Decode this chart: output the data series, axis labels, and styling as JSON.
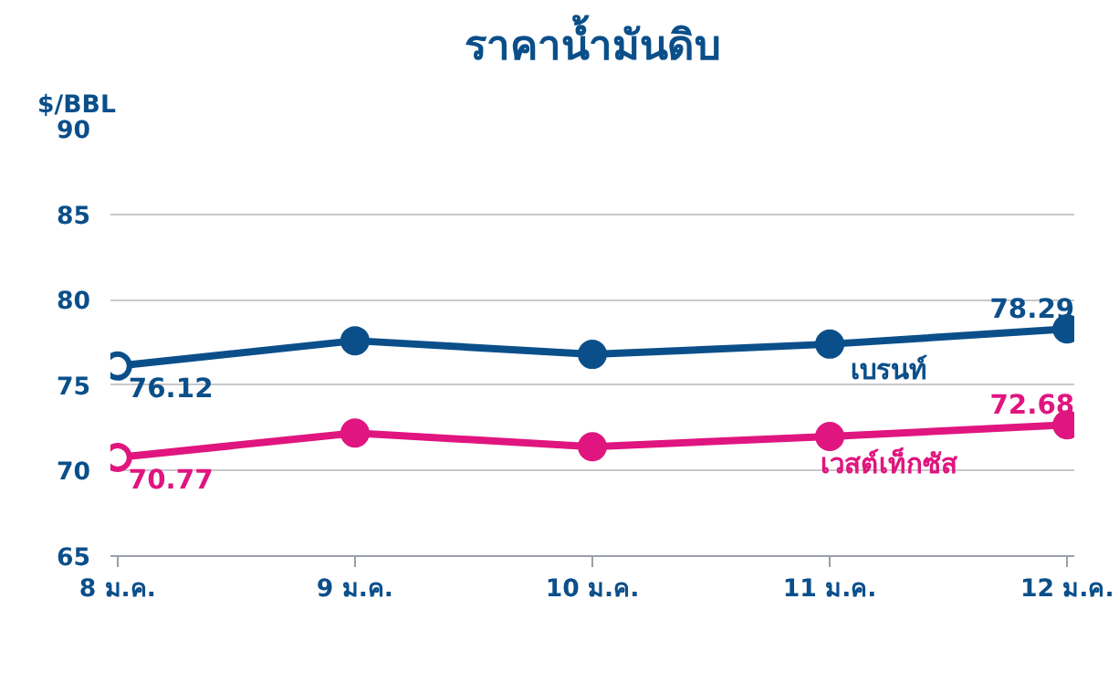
{
  "chart_data": {
    "type": "line",
    "title": "ราคาน้ำมันดิบ",
    "ylabel": "$/BBL",
    "categories": [
      "8 ม.ค.",
      "9 ม.ค.",
      "10 ม.ค.",
      "11 ม.ค.",
      "12 ม.ค."
    ],
    "series": [
      {
        "name": "เบรนท์",
        "color": "#0b4f8a",
        "values": [
          76.12,
          77.6,
          76.8,
          77.4,
          78.29
        ],
        "value_labels": [
          "76.12",
          null,
          null,
          null,
          "78.29"
        ]
      },
      {
        "name": "เวสต์เท็กซัส",
        "color": "#e0157f",
        "values": [
          70.77,
          72.2,
          71.4,
          72.0,
          72.68
        ],
        "value_labels": [
          "70.77",
          null,
          null,
          null,
          "72.68"
        ]
      }
    ],
    "ylim": [
      65,
      90
    ],
    "yticks": [
      65,
      70,
      75,
      80,
      85,
      90
    ],
    "grid": "y",
    "marker": "circle",
    "line_style": "solid"
  }
}
